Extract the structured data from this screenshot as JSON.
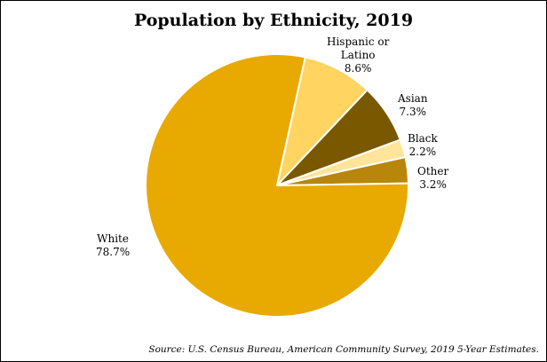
{
  "chart_data": {
    "type": "pie",
    "title": "Population by Ethnicity, 2019",
    "slices": [
      {
        "name": "Hispanic or Latino",
        "label_lines": [
          "Hispanic or",
          "Latino"
        ],
        "value": 8.6,
        "value_label": "8.6%",
        "color": "#FFD460"
      },
      {
        "name": "Asian",
        "label_lines": [
          "Asian"
        ],
        "value": 7.3,
        "value_label": "7.3%",
        "color": "#7A5800"
      },
      {
        "name": "Black",
        "label_lines": [
          "Black"
        ],
        "value": 2.2,
        "value_label": "2.2%",
        "color": "#FFE59A"
      },
      {
        "name": "Other",
        "label_lines": [
          "Other"
        ],
        "value": 3.2,
        "value_label": "3.2%",
        "color": "#B8860B"
      },
      {
        "name": "White",
        "label_lines": [
          "White"
        ],
        "value": 78.7,
        "value_label": "78.7%",
        "color": "#E8A900"
      }
    ],
    "slice_border_color": "#FFFFFF",
    "source": "Source: U.S. Census Bureau, American Community Survey, 2019 5-Year Estimates."
  }
}
